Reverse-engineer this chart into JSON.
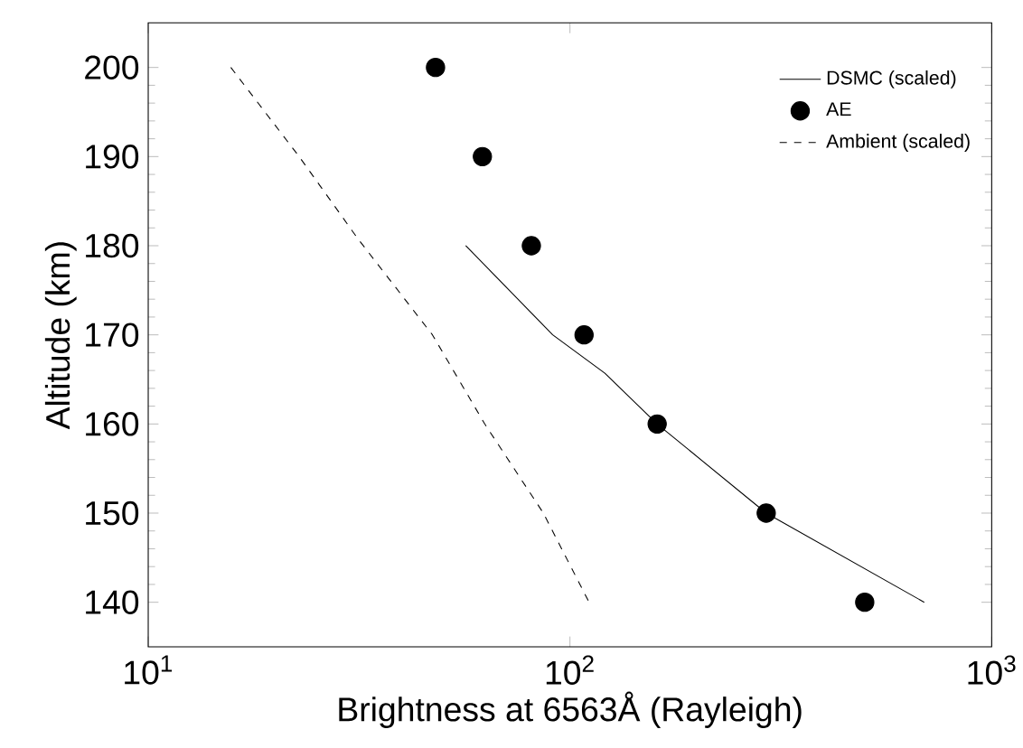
{
  "chart_data": {
    "type": "line",
    "xlabel": "Brightness at 6563Å (Rayleigh)",
    "ylabel": "Altitude (km)",
    "log": "x",
    "xlim": [
      10,
      1000
    ],
    "ylim": [
      135,
      205
    ],
    "xticks": [
      {
        "value": 10,
        "label": "10$^{1}$"
      },
      {
        "value": 100,
        "label": "10$^{2}$"
      },
      {
        "value": 1000,
        "label": "10$^{3}$"
      }
    ],
    "yticks": [
      140,
      150,
      160,
      170,
      180,
      190,
      200
    ],
    "legend": "top right",
    "grid": false,
    "series": [
      {
        "name": "DSMC (scaled)",
        "type": "line",
        "color": "#000000",
        "line_style": "solid",
        "x": [
          56.6,
          91,
          121,
          161,
          292,
          692
        ],
        "values": [
          180,
          170,
          165.7,
          160,
          150,
          140
        ]
      },
      {
        "name": "AE",
        "type": "scatter",
        "color": "#000000",
        "marker": "circle",
        "x": [
          48,
          62,
          81,
          108,
          161,
          292,
          500
        ],
        "values": [
          200,
          190,
          180,
          170,
          160,
          150,
          140
        ]
      },
      {
        "name": "Ambient (scaled)",
        "type": "line",
        "color": "#000000",
        "line_style": "dashed",
        "x": [
          15.7,
          22.8,
          31.4,
          47.2,
          62.8,
          86.5,
          111
        ],
        "values": [
          200,
          190,
          180.8,
          170,
          160,
          150,
          140
        ]
      }
    ]
  }
}
